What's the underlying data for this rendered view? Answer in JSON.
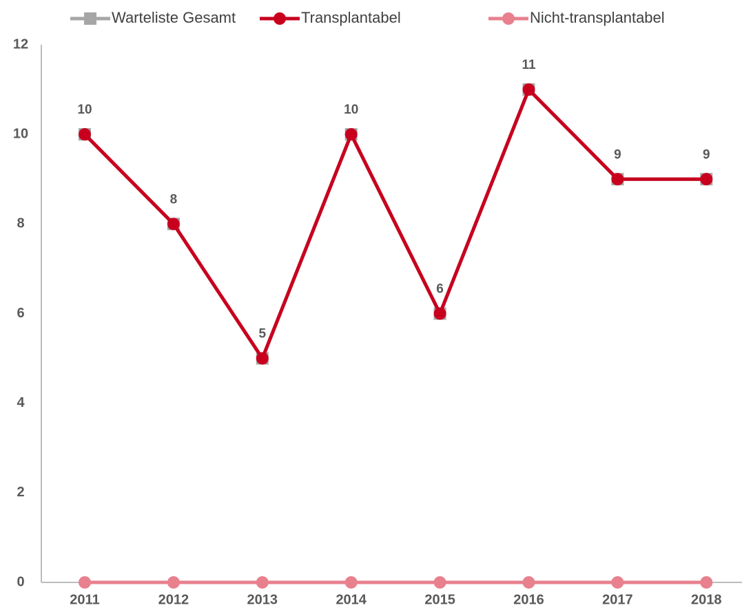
{
  "chart_data": {
    "type": "line",
    "categories": [
      "2011",
      "2012",
      "2013",
      "2014",
      "2015",
      "2016",
      "2017",
      "2018"
    ],
    "series": [
      {
        "name": "Warteliste Gesamt",
        "color": "#a6a6a6",
        "marker": "square",
        "values": [
          10,
          8,
          5,
          10,
          6,
          11,
          9,
          9
        ]
      },
      {
        "name": "Transplantabel",
        "color": "#c8001e",
        "marker": "circle",
        "values": [
          10,
          8,
          5,
          10,
          6,
          11,
          9,
          9
        ]
      },
      {
        "name": "Nicht-transplantabel",
        "color": "#e8808e",
        "marker": "circle",
        "values": [
          0,
          0,
          0,
          0,
          0,
          0,
          0,
          0
        ]
      }
    ],
    "ylim": [
      0,
      12
    ],
    "yticks": [
      0,
      2,
      4,
      6,
      8,
      10,
      12
    ],
    "grid": false
  }
}
